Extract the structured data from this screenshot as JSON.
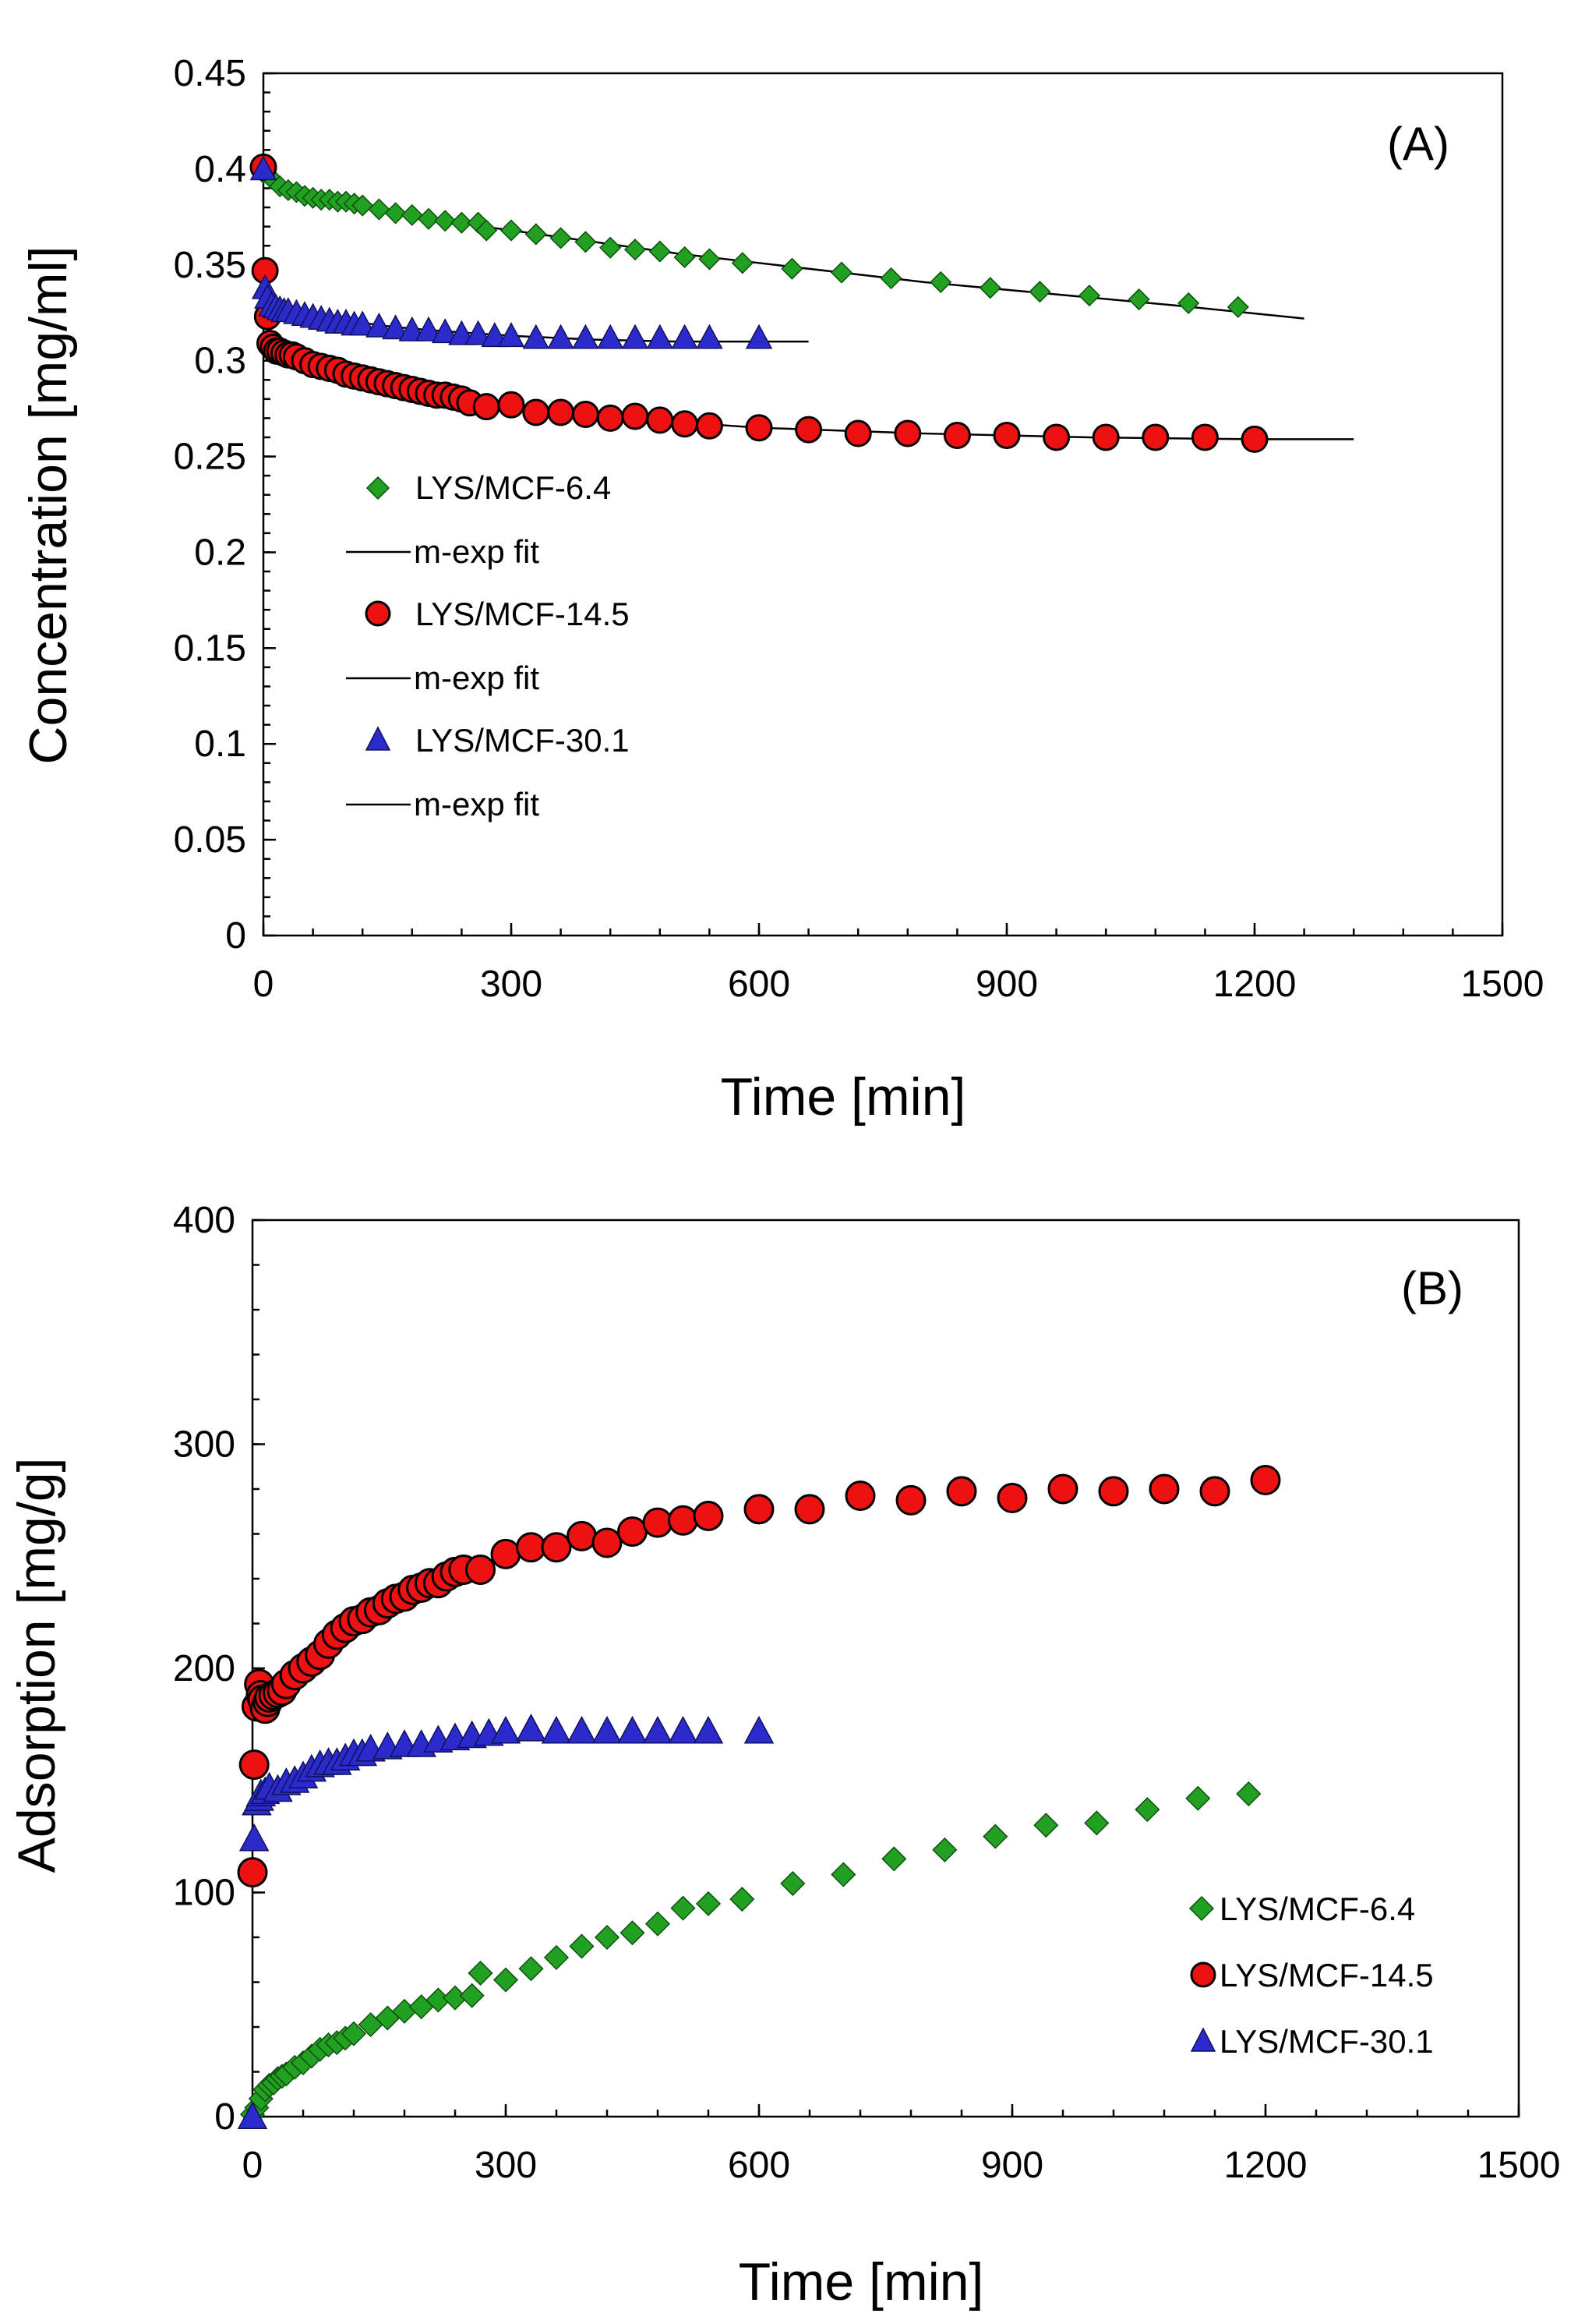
{
  "colors": {
    "green": "#22a022",
    "red": "#ee1111",
    "blue": "#2b2bcc",
    "background": "#ffffff"
  },
  "chart_data": [
    {
      "type": "scatter",
      "panel_label": "(A)",
      "xlabel": "Time [min]",
      "ylabel": "Concentration [mg/ml]",
      "xlim": [
        0,
        1500
      ],
      "ylim": [
        0,
        0.45
      ],
      "xticks": [
        "0",
        "300",
        "600",
        "900",
        "1200",
        "1500"
      ],
      "yticks": [
        "0",
        "0.05",
        "0.1",
        "0.15",
        "0.2",
        "0.25",
        "0.3",
        "0.35",
        "0.4",
        "0.45"
      ],
      "legend_position": "left-middle",
      "legend": [
        "LYS/MCF-6.4",
        "m-exp fit",
        "LYS/MCF-14.5",
        "m-exp fit",
        "LYS/MCF-30.1",
        "m-exp fit"
      ],
      "series": [
        {
          "name": "LYS/MCF-6.4",
          "marker": "diamond",
          "color": "green",
          "x": [
            0,
            10,
            20,
            30,
            40,
            50,
            60,
            70,
            80,
            90,
            100,
            110,
            120,
            140,
            160,
            180,
            200,
            220,
            240,
            260,
            270,
            300,
            330,
            360,
            390,
            420,
            450,
            480,
            510,
            540,
            580,
            640,
            700,
            760,
            820,
            880,
            940,
            1000,
            1060,
            1120,
            1180
          ],
          "y": [
            0.398,
            0.395,
            0.391,
            0.389,
            0.388,
            0.386,
            0.385,
            0.384,
            0.384,
            0.383,
            0.383,
            0.382,
            0.381,
            0.379,
            0.377,
            0.376,
            0.374,
            0.373,
            0.372,
            0.372,
            0.368,
            0.368,
            0.366,
            0.364,
            0.362,
            0.359,
            0.358,
            0.357,
            0.354,
            0.353,
            0.351,
            0.348,
            0.346,
            0.343,
            0.341,
            0.338,
            0.336,
            0.334,
            0.332,
            0.33,
            0.328
          ]
        },
        {
          "name": "m-exp fit",
          "type": "line",
          "color": "#000000",
          "x": [
            0,
            100,
            200,
            300,
            400,
            500,
            600,
            700,
            800,
            900,
            1000,
            1100,
            1260
          ],
          "y": [
            0.394,
            0.383,
            0.374,
            0.368,
            0.362,
            0.356,
            0.351,
            0.346,
            0.341,
            0.337,
            0.333,
            0.329,
            0.322
          ]
        },
        {
          "name": "LYS/MCF-14.5",
          "marker": "circle",
          "color": "red",
          "x": [
            0,
            2,
            5,
            8,
            12,
            16,
            20,
            25,
            30,
            35,
            40,
            50,
            60,
            70,
            80,
            90,
            100,
            110,
            120,
            130,
            140,
            150,
            160,
            170,
            180,
            190,
            200,
            210,
            220,
            230,
            240,
            250,
            270,
            300,
            330,
            360,
            390,
            420,
            450,
            480,
            510,
            540,
            600,
            660,
            720,
            780,
            840,
            900,
            960,
            1020,
            1080,
            1140,
            1200
          ],
          "y": [
            0.401,
            0.347,
            0.323,
            0.309,
            0.307,
            0.305,
            0.305,
            0.304,
            0.303,
            0.303,
            0.302,
            0.3,
            0.298,
            0.297,
            0.296,
            0.295,
            0.293,
            0.292,
            0.291,
            0.29,
            0.289,
            0.288,
            0.287,
            0.286,
            0.285,
            0.284,
            0.283,
            0.282,
            0.282,
            0.281,
            0.28,
            0.278,
            0.276,
            0.277,
            0.273,
            0.273,
            0.272,
            0.27,
            0.271,
            0.269,
            0.267,
            0.266,
            0.265,
            0.264,
            0.262,
            0.262,
            0.261,
            0.261,
            0.26,
            0.26,
            0.26,
            0.26,
            0.259
          ]
        },
        {
          "name": "m-exp fit",
          "type": "line",
          "color": "#000000",
          "x": [
            0,
            10,
            50,
            100,
            200,
            300,
            400,
            500,
            600,
            800,
            1000,
            1200,
            1320
          ],
          "y": [
            0.31,
            0.306,
            0.3,
            0.294,
            0.284,
            0.277,
            0.272,
            0.268,
            0.265,
            0.262,
            0.26,
            0.259,
            0.259
          ]
        },
        {
          "name": "LYS/MCF-30.1",
          "marker": "triangle",
          "color": "blue",
          "x": [
            0,
            2,
            5,
            10,
            15,
            20,
            25,
            30,
            40,
            50,
            60,
            70,
            80,
            90,
            100,
            110,
            120,
            140,
            160,
            180,
            200,
            220,
            240,
            260,
            280,
            300,
            330,
            360,
            390,
            420,
            450,
            480,
            510,
            540,
            600
          ],
          "y": [
            0.4,
            0.338,
            0.333,
            0.329,
            0.328,
            0.327,
            0.326,
            0.326,
            0.325,
            0.324,
            0.323,
            0.322,
            0.321,
            0.32,
            0.32,
            0.319,
            0.319,
            0.318,
            0.317,
            0.316,
            0.316,
            0.315,
            0.314,
            0.314,
            0.313,
            0.313,
            0.312,
            0.312,
            0.312,
            0.312,
            0.312,
            0.312,
            0.312,
            0.312,
            0.312
          ]
        },
        {
          "name": "m-exp fit",
          "type": "line",
          "color": "#000000",
          "x": [
            0,
            50,
            100,
            150,
            200,
            300,
            400,
            500,
            660
          ],
          "y": [
            0.33,
            0.325,
            0.321,
            0.318,
            0.316,
            0.313,
            0.311,
            0.31,
            0.31
          ]
        }
      ]
    },
    {
      "type": "scatter",
      "panel_label": "(B)",
      "xlabel": "Time [min]",
      "ylabel": "Adsorption [mg/g]",
      "xlim": [
        0,
        1500
      ],
      "ylim": [
        0,
        400
      ],
      "xticks": [
        "0",
        "300",
        "600",
        "900",
        "1200",
        "1500"
      ],
      "yticks": [
        "0",
        "100",
        "200",
        "300",
        "400"
      ],
      "legend_position": "bottom-right",
      "legend": [
        "LYS/MCF-6.4",
        "LYS/MCF-14.5",
        "LYS/MCF-30.1"
      ],
      "series": [
        {
          "name": "LYS/MCF-6.4",
          "marker": "diamond",
          "color": "green",
          "x": [
            0,
            5,
            10,
            15,
            20,
            25,
            30,
            35,
            40,
            50,
            60,
            70,
            80,
            90,
            100,
            110,
            120,
            140,
            160,
            180,
            200,
            220,
            240,
            260,
            270,
            300,
            330,
            360,
            390,
            420,
            450,
            480,
            510,
            540,
            580,
            640,
            700,
            760,
            820,
            880,
            940,
            1000,
            1060,
            1120,
            1180
          ],
          "y": [
            1,
            4,
            8,
            12,
            14,
            15,
            17,
            18,
            19,
            22,
            24,
            27,
            30,
            32,
            33,
            35,
            37,
            41,
            44,
            47,
            49,
            52,
            53,
            54,
            64,
            61,
            66,
            71,
            76,
            80,
            82,
            86,
            93,
            95,
            97,
            104,
            108,
            115,
            119,
            125,
            130,
            131,
            137,
            142,
            144
          ]
        },
        {
          "name": "LYS/MCF-14.5",
          "marker": "circle",
          "color": "red",
          "x": [
            0,
            2,
            5,
            8,
            10,
            12,
            15,
            18,
            20,
            25,
            30,
            35,
            40,
            50,
            60,
            70,
            80,
            90,
            100,
            110,
            120,
            130,
            140,
            150,
            160,
            170,
            180,
            190,
            200,
            210,
            220,
            230,
            240,
            250,
            270,
            300,
            330,
            360,
            390,
            420,
            450,
            480,
            510,
            540,
            600,
            660,
            720,
            780,
            840,
            900,
            960,
            1020,
            1080,
            1140,
            1200
          ],
          "y": [
            109,
            157,
            183,
            193,
            188,
            186,
            182,
            185,
            187,
            188,
            189,
            190,
            193,
            197,
            200,
            203,
            206,
            211,
            215,
            218,
            221,
            222,
            225,
            226,
            229,
            231,
            232,
            235,
            236,
            238,
            238,
            241,
            243,
            244,
            244,
            251,
            254,
            254,
            259,
            256,
            261,
            265,
            266,
            268,
            271,
            271,
            277,
            275,
            279,
            276,
            280,
            279,
            280,
            279,
            284
          ]
        },
        {
          "name": "LYS/MCF-30.1",
          "marker": "triangle",
          "color": "blue",
          "x": [
            0,
            2,
            5,
            8,
            10,
            15,
            20,
            30,
            40,
            50,
            60,
            70,
            80,
            90,
            100,
            110,
            120,
            130,
            140,
            160,
            180,
            200,
            220,
            240,
            260,
            280,
            300,
            330,
            360,
            390,
            420,
            450,
            480,
            510,
            540,
            600
          ],
          "y": [
            0,
            124,
            140,
            142,
            144,
            145,
            147,
            146,
            149,
            150,
            152,
            155,
            157,
            158,
            158,
            160,
            162,
            162,
            164,
            165,
            166,
            166,
            168,
            169,
            170,
            171,
            172,
            173,
            172,
            172,
            172,
            172,
            172,
            172,
            172,
            172
          ]
        }
      ]
    }
  ]
}
